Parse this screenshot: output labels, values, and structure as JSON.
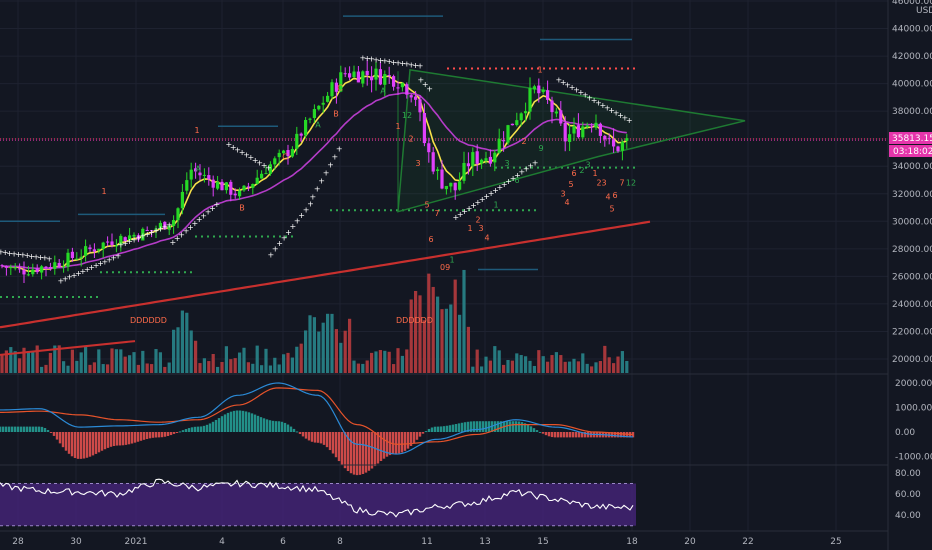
{
  "colors": {
    "background": "#131722",
    "grid": "#1e2230",
    "bull": "#26d926",
    "bear": "#e040fb",
    "ema_fast": "#f7e14a",
    "ema_mid": "#b43cc8",
    "ema_slow": "#c8302e",
    "triangle": "#1e7a32",
    "psar": "#ffffff",
    "vol_up": "#267a80",
    "vol_down": "#a5373b",
    "macd": "#2b8ad6",
    "signal": "#e6532a",
    "hist_pos": "#26a69a",
    "hist_neg": "#ef5350",
    "rsi_line": "#ffffff",
    "rsi_band": "#4a2580",
    "price_tag": "#e535ab",
    "level_red": "#ff4b4b",
    "level_green": "#2fa84f",
    "level_blue": "#1e5a7a",
    "axis_text": "#b2b5be",
    "td_green": "#2fa84f",
    "td_red": "#ff6b4a"
  },
  "axis": {
    "currency": "USD",
    "price_ticks": [
      "46000.00",
      "44000.00",
      "42000.00",
      "40000.00",
      "38000.00",
      "36000.00",
      "34000.00",
      "32000.00",
      "30000.00",
      "28000.00",
      "26000.00",
      "24000.00",
      "22000.00",
      "20000.00"
    ],
    "macd_ticks": [
      "2000.00",
      "1000.00",
      "0.00",
      "-1000.00"
    ],
    "rsi_ticks": [
      "80.00",
      "60.00",
      "40.00"
    ],
    "date_ticks": [
      "28",
      "30",
      "2021",
      "4",
      "6",
      "8",
      "11",
      "13",
      "15",
      "18",
      "20",
      "22",
      "25"
    ]
  },
  "price_tag": {
    "price": "35813.15",
    "countdown": "03:18:02"
  },
  "labels": {
    "ddd_left": "DDDDDD",
    "ddd_right": "DDDDDD",
    "nine_label": "09"
  },
  "chart_data": [
    {
      "type": "line",
      "title": "",
      "note": "candlestick price panel with EMAs, parabolic SAR, volume and a symmetrical triangle",
      "ylim": [
        19000,
        46500
      ],
      "x": [
        "28",
        "30",
        "2021",
        "4",
        "6",
        "8",
        "11",
        "13",
        "15",
        "18"
      ],
      "candles_close_approx": [
        26500,
        27200,
        28800,
        29500,
        33500,
        33000,
        39000,
        41000,
        40500,
        36000,
        32000,
        33500,
        35800,
        39500,
        36500,
        37500,
        35800
      ],
      "levels": [
        {
          "name": "resistance",
          "value": 41000
        },
        {
          "name": "support",
          "value": 30800
        },
        {
          "name": "support",
          "value": 33900
        }
      ],
      "current_price": 35813.15
    },
    {
      "type": "line",
      "title": "",
      "note": "MACD panel",
      "ylim": [
        -1300,
        2300
      ],
      "series": [
        {
          "values": [
            900,
            950,
            200,
            250,
            300,
            600,
            1500,
            2000,
            1500,
            -500,
            -900,
            -300,
            100,
            500,
            200,
            -100,
            -200
          ]
        },
        {
          "values": [
            800,
            850,
            700,
            500,
            400,
            500,
            1100,
            1800,
            1700,
            300,
            -500,
            -400,
            -100,
            300,
            300,
            0,
            -100
          ]
        }
      ]
    },
    {
      "type": "line",
      "title": "",
      "note": "RSI panel",
      "ylim": [
        25,
        85
      ],
      "band": [
        30,
        70
      ],
      "series": [
        {
          "values": [
            68,
            63,
            62,
            60,
            72,
            66,
            70,
            68,
            64,
            45,
            40,
            48,
            52,
            62,
            55,
            48,
            47
          ]
        }
      ]
    }
  ]
}
